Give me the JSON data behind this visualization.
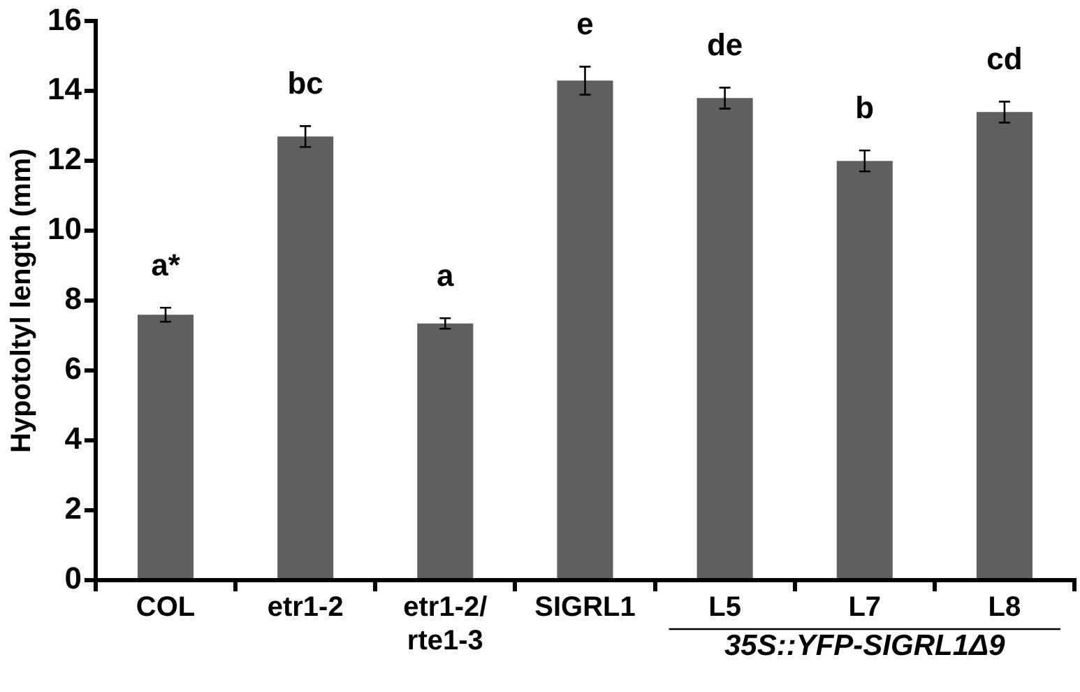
{
  "chart_data": {
    "type": "bar",
    "ylabel": "Hypotoltyl length (mm)",
    "categories": [
      "COL",
      "etr1-2",
      "etr1-2/\nrte1-3",
      "SIGRL1",
      "L5",
      "L7",
      "L8"
    ],
    "values": [
      7.6,
      12.7,
      7.35,
      14.3,
      13.8,
      12.0,
      13.4
    ],
    "errors": [
      0.2,
      0.3,
      0.15,
      0.4,
      0.3,
      0.3,
      0.3
    ],
    "color": "#5f5f5f",
    "ylim": [
      0,
      16
    ],
    "yticks": [
      0,
      2,
      4,
      6,
      8,
      10,
      12,
      14,
      16
    ],
    "grid": false,
    "legend": false,
    "annotations": [
      "a*",
      "bc",
      "a",
      "e",
      "de",
      "b",
      "cd",
      "35S::YFP-SIGRL1Δ9"
    ]
  }
}
